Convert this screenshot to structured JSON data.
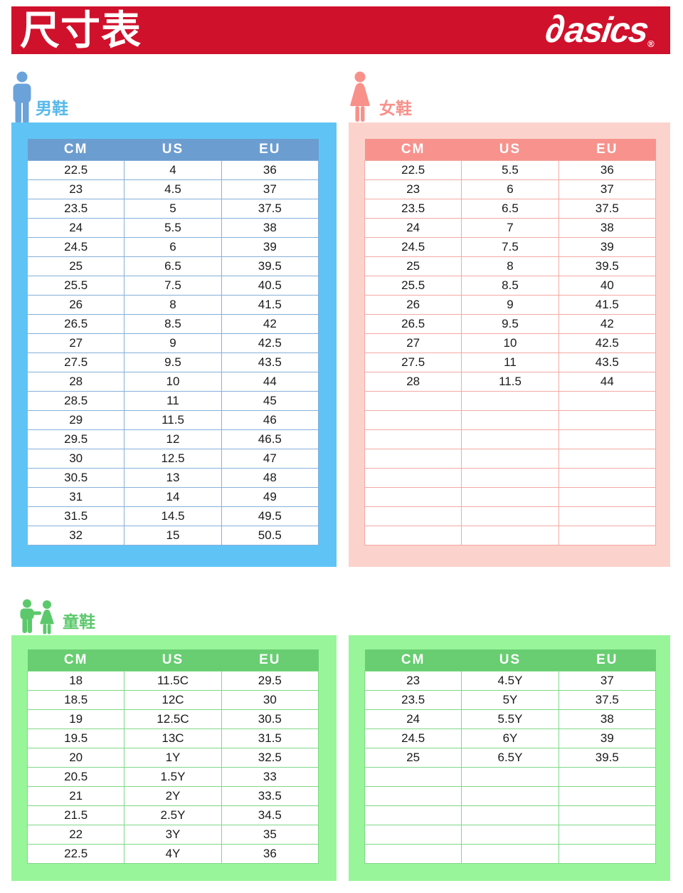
{
  "header": {
    "title": "尺寸表",
    "logo_mark": "∂",
    "logo_text": "asics",
    "registered": "®"
  },
  "colors": {
    "brand_red": "#D0112B",
    "men_panel": "#5FC4F5",
    "men_header": "#6C9DD0",
    "men_label": "#56B8EA",
    "men_icon": "#6BA2DA",
    "women_panel": "#FBD3CC",
    "women_header": "#F8928D",
    "women_accent": "#F8918A",
    "kids_panel": "#98F59A",
    "kids_header": "#68CE71",
    "kids_accent": "#5BC96B"
  },
  "sections": {
    "men": {
      "label": "男鞋",
      "table": {
        "columns": [
          "CM",
          "US",
          "EU"
        ],
        "rows": [
          [
            "22.5",
            "4",
            "36"
          ],
          [
            "23",
            "4.5",
            "37"
          ],
          [
            "23.5",
            "5",
            "37.5"
          ],
          [
            "24",
            "5.5",
            "38"
          ],
          [
            "24.5",
            "6",
            "39"
          ],
          [
            "25",
            "6.5",
            "39.5"
          ],
          [
            "25.5",
            "7.5",
            "40.5"
          ],
          [
            "26",
            "8",
            "41.5"
          ],
          [
            "26.5",
            "8.5",
            "42"
          ],
          [
            "27",
            "9",
            "42.5"
          ],
          [
            "27.5",
            "9.5",
            "43.5"
          ],
          [
            "28",
            "10",
            "44"
          ],
          [
            "28.5",
            "11",
            "45"
          ],
          [
            "29",
            "11.5",
            "46"
          ],
          [
            "29.5",
            "12",
            "46.5"
          ],
          [
            "30",
            "12.5",
            "47"
          ],
          [
            "30.5",
            "13",
            "48"
          ],
          [
            "31",
            "14",
            "49"
          ],
          [
            "31.5",
            "14.5",
            "49.5"
          ],
          [
            "32",
            "15",
            "50.5"
          ]
        ],
        "empty_rows": 0
      }
    },
    "women": {
      "label": "女鞋",
      "table": {
        "columns": [
          "CM",
          "US",
          "EU"
        ],
        "rows": [
          [
            "22.5",
            "5.5",
            "36"
          ],
          [
            "23",
            "6",
            "37"
          ],
          [
            "23.5",
            "6.5",
            "37.5"
          ],
          [
            "24",
            "7",
            "38"
          ],
          [
            "24.5",
            "7.5",
            "39"
          ],
          [
            "25",
            "8",
            "39.5"
          ],
          [
            "25.5",
            "8.5",
            "40"
          ],
          [
            "26",
            "9",
            "41.5"
          ],
          [
            "26.5",
            "9.5",
            "42"
          ],
          [
            "27",
            "10",
            "42.5"
          ],
          [
            "27.5",
            "11",
            "43.5"
          ],
          [
            "28",
            "11.5",
            "44"
          ]
        ],
        "empty_rows": 8
      }
    },
    "kids": {
      "label": "童鞋",
      "table_left": {
        "columns": [
          "CM",
          "US",
          "EU"
        ],
        "rows": [
          [
            "18",
            "11.5C",
            "29.5"
          ],
          [
            "18.5",
            "12C",
            "30"
          ],
          [
            "19",
            "12.5C",
            "30.5"
          ],
          [
            "19.5",
            "13C",
            "31.5"
          ],
          [
            "20",
            "1Y",
            "32.5"
          ],
          [
            "20.5",
            "1.5Y",
            "33"
          ],
          [
            "21",
            "2Y",
            "33.5"
          ],
          [
            "21.5",
            "2.5Y",
            "34.5"
          ],
          [
            "22",
            "3Y",
            "35"
          ],
          [
            "22.5",
            "4Y",
            "36"
          ]
        ],
        "empty_rows": 0
      },
      "table_right": {
        "columns": [
          "CM",
          "US",
          "EU"
        ],
        "rows": [
          [
            "23",
            "4.5Y",
            "37"
          ],
          [
            "23.5",
            "5Y",
            "37.5"
          ],
          [
            "24",
            "5.5Y",
            "38"
          ],
          [
            "24.5",
            "6Y",
            "39"
          ],
          [
            "25",
            "6.5Y",
            "39.5"
          ]
        ],
        "empty_rows": 5
      }
    }
  }
}
